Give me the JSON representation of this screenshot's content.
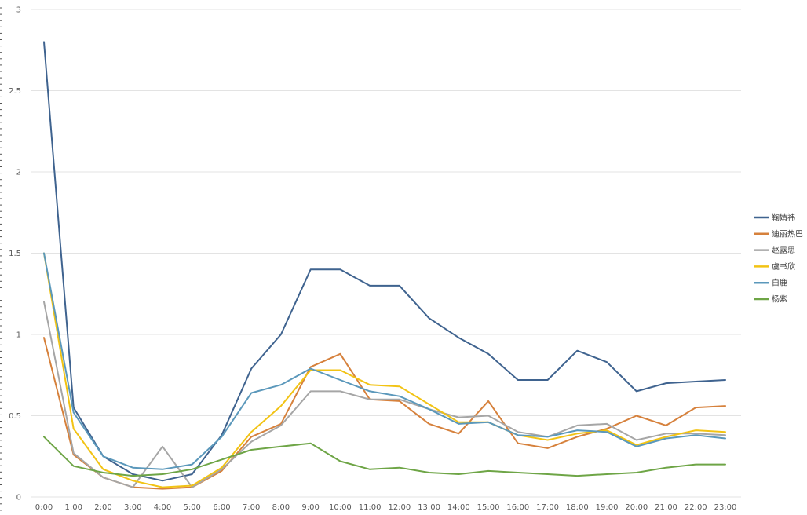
{
  "chart_data": {
    "type": "line",
    "title": "",
    "xlabel": "",
    "ylabel": "",
    "ylim": [
      0,
      3
    ],
    "yticks": [
      "0",
      "0.5",
      "1",
      "1.5",
      "2",
      "2.5",
      "3"
    ],
    "grid": true,
    "legend_position": "right",
    "categories": [
      "0:00",
      "1:00",
      "2:00",
      "3:00",
      "4:00",
      "5:00",
      "6:00",
      "7:00",
      "8:00",
      "9:00",
      "10:00",
      "11:00",
      "12:00",
      "13:00",
      "14:00",
      "15:00",
      "16:00",
      "17:00",
      "18:00",
      "19:00",
      "20:00",
      "21:00",
      "22:00",
      "23:00"
    ],
    "series": [
      {
        "name": "鞠婧祎",
        "color": "#3f638f",
        "values": [
          2.8,
          0.55,
          0.25,
          0.14,
          0.1,
          0.14,
          0.38,
          0.79,
          1.0,
          1.4,
          1.4,
          1.3,
          1.3,
          1.1,
          0.98,
          0.88,
          0.72,
          0.72,
          0.9,
          0.83,
          0.65,
          0.7,
          0.71,
          0.72
        ]
      },
      {
        "name": "迪丽热巴",
        "color": "#d6813c",
        "values": [
          0.98,
          0.26,
          0.12,
          0.06,
          0.05,
          0.06,
          0.16,
          0.37,
          0.45,
          0.8,
          0.88,
          0.6,
          0.59,
          0.45,
          0.39,
          0.59,
          0.33,
          0.3,
          0.37,
          0.42,
          0.5,
          0.44,
          0.55,
          0.56
        ]
      },
      {
        "name": "赵露思",
        "color": "#a6a6a6",
        "values": [
          1.2,
          0.27,
          0.12,
          0.06,
          0.31,
          0.06,
          0.17,
          0.34,
          0.44,
          0.65,
          0.65,
          0.6,
          0.6,
          0.54,
          0.49,
          0.5,
          0.4,
          0.37,
          0.44,
          0.45,
          0.35,
          0.39,
          0.39,
          0.38
        ]
      },
      {
        "name": "虞书欣",
        "color": "#f2c314",
        "values": [
          1.5,
          0.42,
          0.17,
          0.1,
          0.06,
          0.07,
          0.18,
          0.4,
          0.56,
          0.78,
          0.78,
          0.69,
          0.68,
          0.57,
          0.46,
          0.46,
          0.38,
          0.35,
          0.39,
          0.41,
          0.32,
          0.37,
          0.41,
          0.4
        ]
      },
      {
        "name": "白鹿",
        "color": "#5b98bb",
        "values": [
          1.5,
          0.52,
          0.25,
          0.18,
          0.17,
          0.2,
          0.37,
          0.64,
          0.69,
          0.79,
          0.72,
          0.65,
          0.62,
          0.54,
          0.45,
          0.46,
          0.38,
          0.37,
          0.41,
          0.4,
          0.31,
          0.36,
          0.38,
          0.36
        ]
      },
      {
        "name": "杨紫",
        "color": "#6ea546",
        "values": [
          0.37,
          0.19,
          0.15,
          0.13,
          0.14,
          0.17,
          0.23,
          0.29,
          0.31,
          0.33,
          0.22,
          0.17,
          0.18,
          0.15,
          0.14,
          0.16,
          0.15,
          0.14,
          0.13,
          0.14,
          0.15,
          0.18,
          0.2,
          0.2
        ]
      }
    ]
  }
}
